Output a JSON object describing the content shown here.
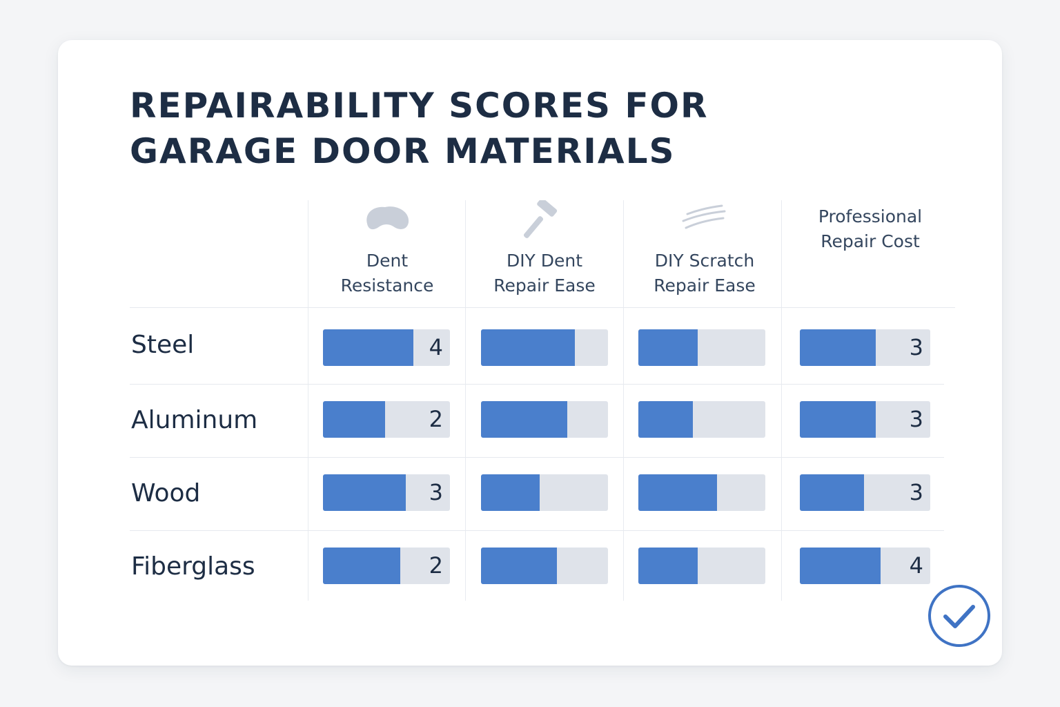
{
  "title_lines": [
    "REPAIRABILITY SCORES FOR",
    "GARAGE DOOR MATERIALS"
  ],
  "colors": {
    "bar_fill": "#4a7fcc",
    "bar_track": "#dfe3ea",
    "text": "#1d2d44",
    "icon": "#c9cfd9",
    "check": "#3f73c4"
  },
  "columns": [
    {
      "lines": [
        "Dent",
        "Resistance"
      ],
      "icon": "dent-blob-icon"
    },
    {
      "lines": [
        "DIY Dent",
        "Repair Ease"
      ],
      "icon": "hammer-icon"
    },
    {
      "lines": [
        "DIY Scratch",
        "Repair Ease"
      ],
      "icon": "scratch-lines-icon"
    },
    {
      "lines": [
        "Professional",
        "Repair Cost"
      ],
      "icon": null
    }
  ],
  "chart_data": {
    "type": "table",
    "title": "REPAIRABILITY SCORES FOR GARAGE DOOR MATERIALS",
    "categories": [
      "Steel",
      "Aluminum",
      "Wood",
      "Fiberglass"
    ],
    "series": [
      {
        "name": "Dent Resistance",
        "values": [
          4,
          2,
          3,
          2
        ],
        "labels": [
          "4",
          "2",
          "3",
          "2"
        ]
      },
      {
        "name": "DIY Dent Repair Ease",
        "values": [
          3.7,
          3.4,
          2.3,
          3.0
        ],
        "labels": [
          "",
          "",
          "",
          ""
        ]
      },
      {
        "name": "DIY Scratch Repair Ease",
        "values": [
          2.4,
          2.2,
          3.1,
          2.4
        ],
        "labels": [
          "",
          "",
          "",
          ""
        ]
      },
      {
        "name": "Professional Repair Cost",
        "values": [
          3,
          3,
          3,
          4
        ],
        "labels": [
          "3",
          "3",
          "3",
          "4"
        ]
      }
    ],
    "scale_max": 5,
    "bar_fill_fraction": [
      [
        0.71,
        0.74,
        0.47,
        0.58
      ],
      [
        0.49,
        0.68,
        0.43,
        0.58
      ],
      [
        0.65,
        0.46,
        0.62,
        0.49
      ],
      [
        0.61,
        0.6,
        0.47,
        0.62
      ]
    ]
  },
  "check_icon": "check-circle-icon"
}
